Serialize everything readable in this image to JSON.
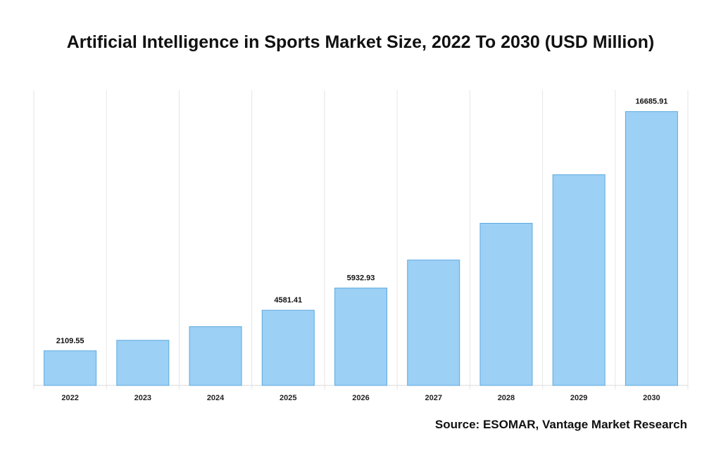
{
  "title": "Artificial Intelligence in Sports Market Size, 2022 To 2030 (USD Million)",
  "source": "Source: ESOMAR, Vantage Market Research",
  "colors": {
    "bar_fill": "#9dd0f5",
    "bar_stroke": "#5aa9df",
    "grid": "#e6e6e6"
  },
  "chart_data": {
    "type": "bar",
    "categories": [
      "2022",
      "2023",
      "2024",
      "2025",
      "2026",
      "2027",
      "2028",
      "2029",
      "2030"
    ],
    "values": [
      2109.55,
      2750,
      3580,
      4581.41,
      5932.93,
      7640,
      9880,
      12840,
      16685.91
    ],
    "data_labels": [
      "2109.55",
      "",
      "",
      "4581.41",
      "5932.93",
      "",
      "",
      "",
      "16685.91"
    ],
    "ylim": [
      0,
      18000
    ],
    "grid": true,
    "title": "Artificial Intelligence in Sports Market Size, 2022 To 2030 (USD Million)",
    "xlabel": "",
    "ylabel": ""
  }
}
